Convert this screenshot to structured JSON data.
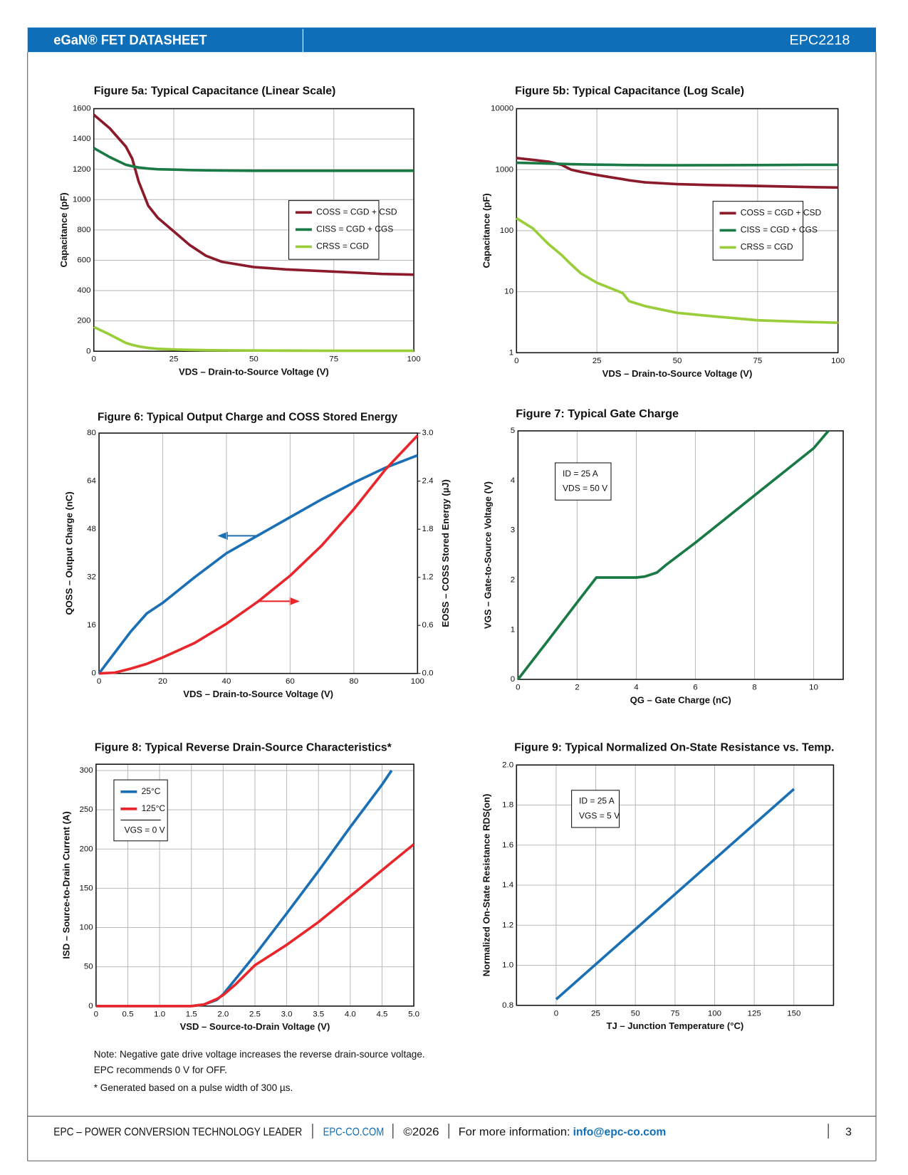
{
  "header": {
    "title": "eGaN® FET DATASHEET",
    "part_number": "EPC2218"
  },
  "footer": {
    "company": "EPC – POWER CONVERSION TECHNOLOGY LEADER",
    "website": "EPC-CO.COM",
    "copyright": "©2026",
    "info_label": "For more information:",
    "email": "info@epc-co.com",
    "page": "3"
  },
  "notes": [
    "Note: Negative gate drive voltage increases the reverse drain-source voltage.",
    "EPC recommends 0 V for OFF.",
    "* Generated based on a pulse width of 300 µs."
  ],
  "chart_data": [
    {
      "type": "line",
      "title": "Figure 5a: Typical Capacitance (Linear Scale)",
      "xlabel": "VDS – Drain-to-Source Voltage (V)",
      "ylabel": "Capacitance (pF)",
      "x": [
        0,
        5,
        10,
        12,
        14,
        17,
        20,
        25,
        30,
        35,
        40,
        50,
        60,
        75,
        90,
        100
      ],
      "series": [
        {
          "name": "COSS = CGD + CSD",
          "color": "#8b1a2b",
          "values": [
            1560,
            1470,
            1350,
            1270,
            1120,
            960,
            880,
            790,
            700,
            630,
            590,
            555,
            540,
            525,
            510,
            505
          ]
        },
        {
          "name": "CISS = CGD + CGS",
          "color": "#1a7a45",
          "values": [
            1340,
            1280,
            1230,
            1220,
            1212,
            1205,
            1200,
            1198,
            1195,
            1193,
            1192,
            1190,
            1190,
            1190,
            1190,
            1190
          ]
        },
        {
          "name": "CRSS = CGD",
          "color": "#9acd3a",
          "values": [
            160,
            110,
            55,
            42,
            32,
            22,
            16,
            12,
            9,
            7,
            6,
            5,
            4,
            3,
            3,
            3
          ]
        }
      ],
      "xlim": [
        0,
        100
      ],
      "xticks": [
        0,
        25,
        50,
        75,
        100
      ],
      "ylim": [
        0,
        1600
      ],
      "yticks": [
        0,
        200,
        400,
        600,
        800,
        1000,
        1200,
        1400,
        1600
      ],
      "grid": "both",
      "legend": "center right"
    },
    {
      "type": "line",
      "title": "Figure 5b: Typical Capacitance (Log Scale)",
      "xlabel": "VDS – Drain-to-Source Voltage (V)",
      "ylabel": "Capacitance (pF)",
      "x": [
        0,
        5,
        10,
        14,
        17,
        20,
        25,
        30,
        33,
        35,
        40,
        50,
        60,
        75,
        90,
        100
      ],
      "series": [
        {
          "name": "COSS = CGD + CSD",
          "color": "#8b1a2b",
          "values": [
            1550,
            1450,
            1350,
            1200,
            1000,
            920,
            820,
            740,
            700,
            670,
            620,
            580,
            560,
            540,
            520,
            510
          ]
        },
        {
          "name": "CISS = CGD + CGS",
          "color": "#1a7a45",
          "values": [
            1300,
            1280,
            1260,
            1240,
            1230,
            1220,
            1210,
            1200,
            1195,
            1190,
            1185,
            1180,
            1185,
            1190,
            1200,
            1200
          ]
        },
        {
          "name": "CRSS = CGD",
          "color": "#9acd3a",
          "values": [
            160,
            110,
            60,
            40,
            28,
            20,
            14,
            11,
            9.5,
            7,
            5.8,
            4.5,
            4,
            3.4,
            3.2,
            3.1
          ]
        }
      ],
      "xlim": [
        0,
        100
      ],
      "xticks": [
        0,
        25,
        50,
        75,
        100
      ],
      "ylim": [
        1,
        10000
      ],
      "yticks": [
        1,
        10,
        100,
        1000,
        10000
      ],
      "log_y": true,
      "grid": "both",
      "legend": "center right"
    },
    {
      "type": "line",
      "title": "Figure 6: Typical Output Charge and COSS Stored Energy",
      "xlabel": "VDS – Drain-to-Source Voltage (V)",
      "ylabel": "QOSS – Output Charge (nC)",
      "y2label": "EOSS – COSS Stored Energy (µJ)",
      "x": [
        0,
        5,
        10,
        15,
        20,
        30,
        40,
        50,
        60,
        70,
        80,
        90,
        100
      ],
      "series": [
        {
          "color": "#1a6fb5",
          "values": [
            0,
            7,
            14,
            20,
            23.5,
            32,
            40,
            46,
            52,
            58,
            63.5,
            68.5,
            72.6
          ]
        },
        {
          "color": "#e8262b",
          "axis": "y2",
          "values": [
            0,
            0.01,
            0.06,
            0.12,
            0.2,
            0.38,
            0.62,
            0.9,
            1.22,
            1.6,
            2.05,
            2.55,
            2.97
          ]
        }
      ],
      "xlim": [
        0,
        100
      ],
      "xticks": [
        0,
        20,
        40,
        60,
        80,
        100
      ],
      "ylim": [
        0,
        80
      ],
      "yticks": [
        0,
        16,
        32,
        48,
        64,
        80
      ],
      "y2lim": [
        0,
        3
      ],
      "y2ticks": [
        {
          "value": 0,
          "label": "0.0"
        },
        0.6,
        1.2,
        1.8,
        2.4,
        {
          "value": 3,
          "label": "3.0"
        }
      ],
      "grid": "x"
    },
    {
      "type": "line",
      "title": "Figure 7: Typical Gate Charge",
      "xlabel": "QG – Gate Charge (nC)",
      "ylabel": "VGS – Gate-to-Source Voltage (V)",
      "x": [
        0,
        1,
        2,
        2.65,
        3,
        4,
        4.3,
        4.7,
        5,
        6,
        8,
        10,
        10.5
      ],
      "values": [
        0,
        0.77,
        1.55,
        2.05,
        2.05,
        2.05,
        2.07,
        2.15,
        2.3,
        2.75,
        3.7,
        4.65,
        5
      ],
      "color": "#1a7a45",
      "xlim": [
        0,
        11
      ],
      "xticks": [
        0,
        2,
        4,
        6,
        8,
        10
      ],
      "ylim": [
        0,
        5
      ],
      "yticks": [
        0,
        1,
        2,
        3,
        4,
        5
      ],
      "grid": "x",
      "annotation": [
        "ID = 25 A",
        "VDS = 50 V"
      ],
      "annotation_position": "upper left"
    },
    {
      "type": "line",
      "title": "Figure 8: Typical Reverse Drain-Source Characteristics*",
      "xlabel": "VSD – Source-to-Drain Voltage (V)",
      "ylabel": "ISD – Source-to-Drain Current (A)",
      "x": [
        0,
        0.5,
        1,
        1.5,
        1.7,
        1.9,
        2,
        2.2,
        2.5,
        3,
        3.5,
        4,
        4.5,
        4.65,
        5
      ],
      "series": [
        {
          "name": "25°C",
          "color": "#1a6fb5",
          "values": [
            0,
            0,
            0,
            0,
            2,
            8,
            15,
            35,
            65,
            118,
            172,
            228,
            282,
            300,
            null
          ]
        },
        {
          "name": "125°C",
          "color": "#e8262b",
          "values": [
            0,
            0,
            0,
            0,
            2,
            9,
            14,
            28,
            52,
            78,
            107,
            140,
            173,
            183,
            206
          ]
        }
      ],
      "xlim": [
        0,
        5
      ],
      "xticks": [
        0,
        0.5,
        {
          "value": 1,
          "label": "1.0"
        },
        1.5,
        {
          "value": 2,
          "label": "2.0"
        },
        2.5,
        {
          "value": 3,
          "label": "3.0"
        },
        3.5,
        {
          "value": 4,
          "label": "4.0"
        },
        4.5,
        {
          "value": 5,
          "label": "5.0"
        }
      ],
      "ylim": [
        0,
        308
      ],
      "yticks": [
        0,
        50,
        100,
        150,
        200,
        250,
        300
      ],
      "grid": "both",
      "legend": "upper left",
      "legend_note": "VGS = 0 V"
    },
    {
      "type": "line",
      "title": "Figure 9: Typical Normalized On-State Resistance vs. Temp.",
      "xlabel": "TJ – Junction Temperature (°C)",
      "ylabel": "Normalized On-State Resistance RDS(on)",
      "x": [
        0,
        150
      ],
      "values": [
        0.83,
        1.88
      ],
      "color": "#1a6fb5",
      "xlim": [
        -25,
        175
      ],
      "xticks": [
        0,
        25,
        50,
        75,
        100,
        125,
        150
      ],
      "ylim": [
        0.8,
        2
      ],
      "yticks": [
        0.8,
        {
          "value": 1,
          "label": "1.0"
        },
        1.2,
        1.4,
        1.6,
        1.8,
        {
          "value": 2,
          "label": "2.0"
        }
      ],
      "grid": "both",
      "annotation": [
        "ID = 25 A",
        "VGS = 5 V"
      ],
      "annotation_position": "upper left"
    }
  ]
}
